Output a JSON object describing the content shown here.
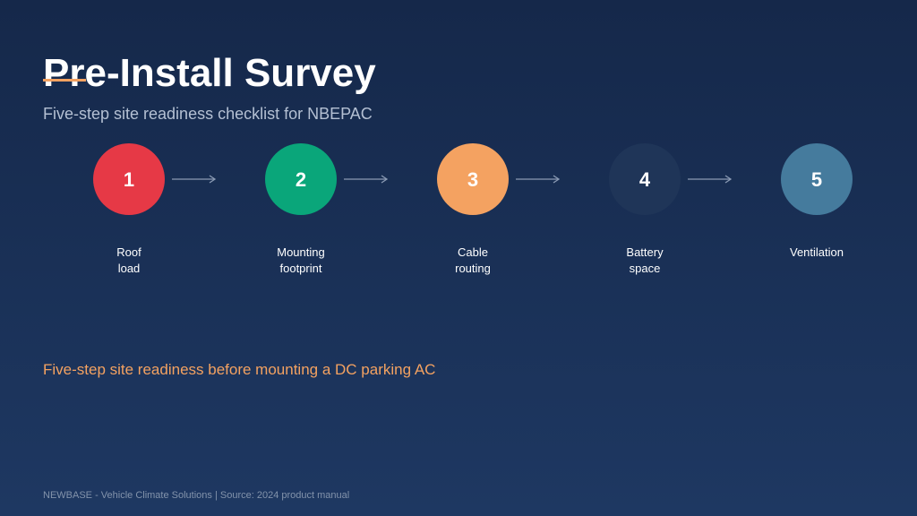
{
  "header": {
    "title": "Pre-Install Survey",
    "subtitle": "Five-step site readiness checklist for NBEPAC"
  },
  "steps": [
    {
      "number": "1",
      "label": [
        "Roof",
        "load"
      ],
      "color": "#e63946"
    },
    {
      "number": "2",
      "label": [
        "Mounting",
        "footprint"
      ],
      "color": "#0aa67a"
    },
    {
      "number": "3",
      "label": [
        "Cable",
        "routing"
      ],
      "color": "#f4a261"
    },
    {
      "number": "4",
      "label": [
        "Battery",
        "space"
      ],
      "color": "#1f3558"
    },
    {
      "number": "5",
      "label": [
        "Ventilation"
      ],
      "color": "#457b9d"
    }
  ],
  "note": "Five-step site readiness before mounting a DC parking AC",
  "footer": "NEWBASE - Vehicle Climate Solutions | Source: 2024 product manual"
}
